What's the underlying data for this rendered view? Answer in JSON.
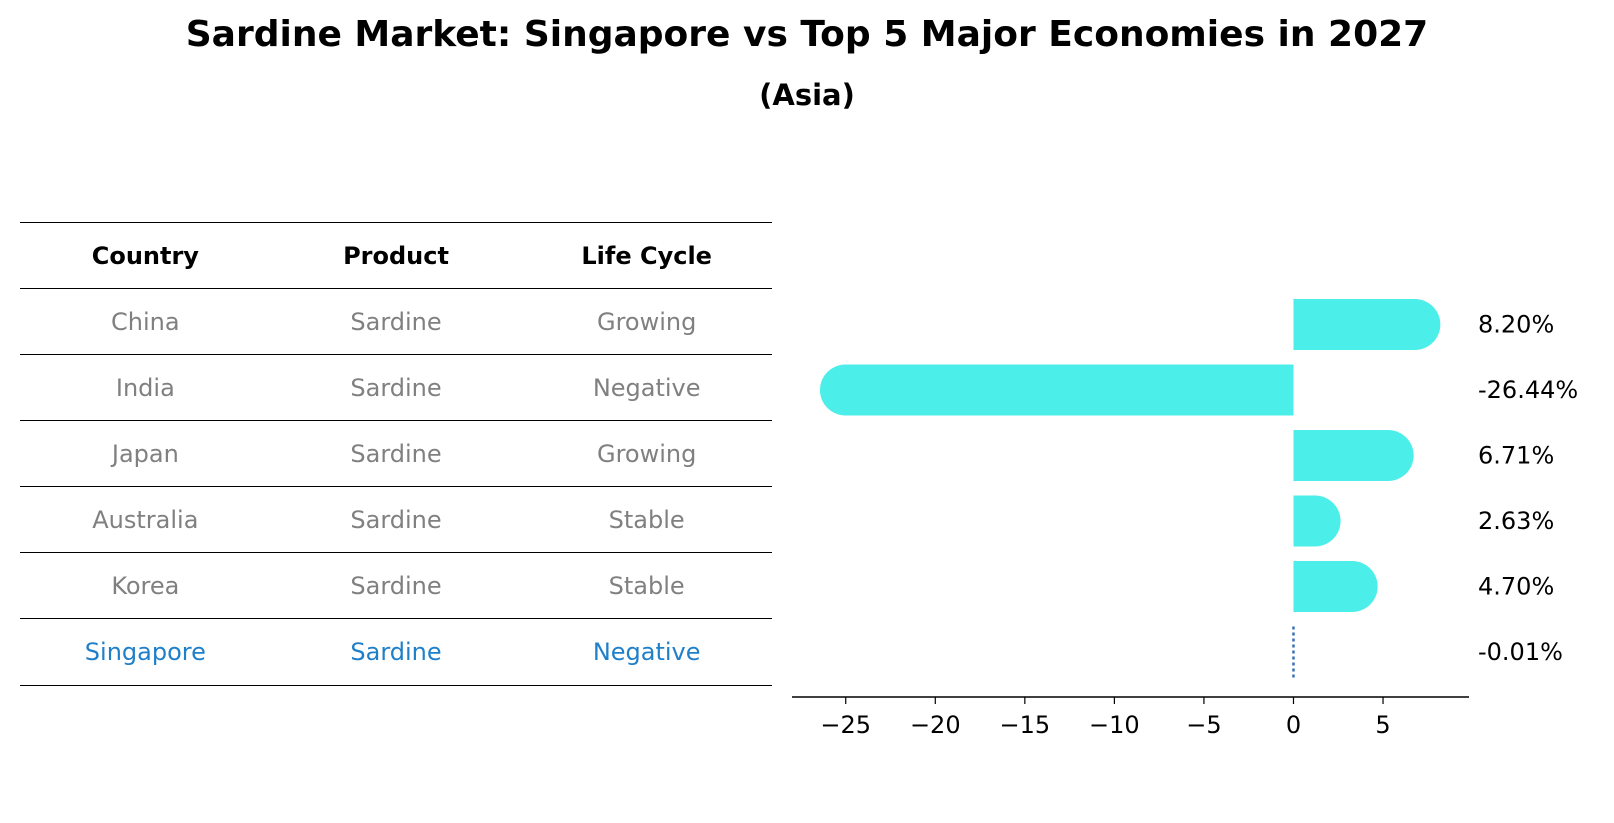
{
  "title": "Sardine Market: Singapore vs Top 5 Major Economies in 2027",
  "subtitle": "(Asia)",
  "table": {
    "headers": [
      "Country",
      "Product",
      "Life Cycle"
    ],
    "rows": [
      [
        "China",
        "Sardine",
        "Growing"
      ],
      [
        "India",
        "Sardine",
        "Negative"
      ],
      [
        "Japan",
        "Sardine",
        "Growing"
      ],
      [
        "Australia",
        "Sardine",
        "Stable"
      ],
      [
        "Korea",
        "Sardine",
        "Stable"
      ],
      [
        "Singapore",
        "Sardine",
        "Negative"
      ]
    ],
    "highlight_row": "Singapore"
  },
  "chart_data": {
    "type": "bar",
    "orientation": "horizontal",
    "categories": [
      "China",
      "India",
      "Japan",
      "Australia",
      "Korea",
      "Singapore"
    ],
    "values": [
      8.2,
      -26.44,
      6.71,
      2.63,
      4.7,
      -0.01
    ],
    "data_labels": [
      "8.20%",
      "-26.44%",
      "6.71%",
      "2.63%",
      "4.70%",
      "-0.01%"
    ],
    "xlim": [
      -28,
      9.8
    ],
    "xticks": [
      -25,
      -20,
      -15,
      -10,
      -5,
      0,
      5
    ],
    "xtick_labels": [
      "−25",
      "−20",
      "−15",
      "−10",
      "−5",
      "0",
      "5"
    ],
    "bar_color": "#4ceee9",
    "zero_line_color": "#3a6fb8",
    "text_color": "#000000",
    "grid": false
  }
}
